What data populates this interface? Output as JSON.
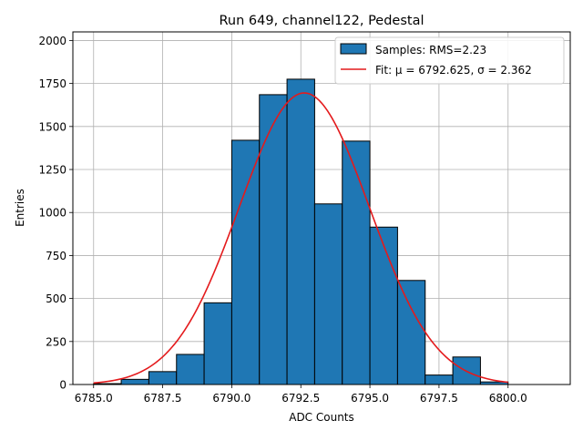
{
  "chart_data": {
    "type": "bar",
    "title": "Run 649, channel122, Pedestal",
    "xlabel": "ADC Counts",
    "ylabel": "Entries",
    "xlim": [
      6784.25,
      6802.25
    ],
    "ylim": [
      0,
      2050
    ],
    "grid": true,
    "legend_position": "top-right",
    "x_ticks": [
      6785.0,
      6787.5,
      6790.0,
      6792.5,
      6795.0,
      6797.5,
      6800.0
    ],
    "x_tick_labels": [
      "6785.0",
      "6787.5",
      "6790.0",
      "6792.5",
      "6795.0",
      "6797.5",
      "6800.0"
    ],
    "y_ticks": [
      0,
      250,
      500,
      750,
      1000,
      1250,
      1500,
      1750,
      2000
    ],
    "y_tick_labels": [
      "0",
      "250",
      "500",
      "750",
      "1000",
      "1250",
      "1500",
      "1750",
      "2000"
    ],
    "bin_edges": [
      6785,
      6786,
      6787,
      6788,
      6789,
      6790,
      6791,
      6792,
      6793,
      6794,
      6795,
      6796,
      6797,
      6798,
      6799,
      6800
    ],
    "values": [
      5,
      30,
      75,
      175,
      475,
      1420,
      1685,
      1775,
      1050,
      1415,
      915,
      605,
      55,
      160,
      15
    ],
    "series": [
      {
        "name": "Samples: RMS=2.23",
        "kind": "histogram",
        "color": "#1f77b4",
        "edge_color": "#000000"
      },
      {
        "name": "Fit: μ = 6792.625, σ = 2.362",
        "kind": "gaussian-fit",
        "color": "#e41a1c",
        "mu": 6792.625,
        "sigma": 2.362,
        "peak": 1695,
        "x_range": [
          6785,
          6800
        ]
      }
    ]
  }
}
